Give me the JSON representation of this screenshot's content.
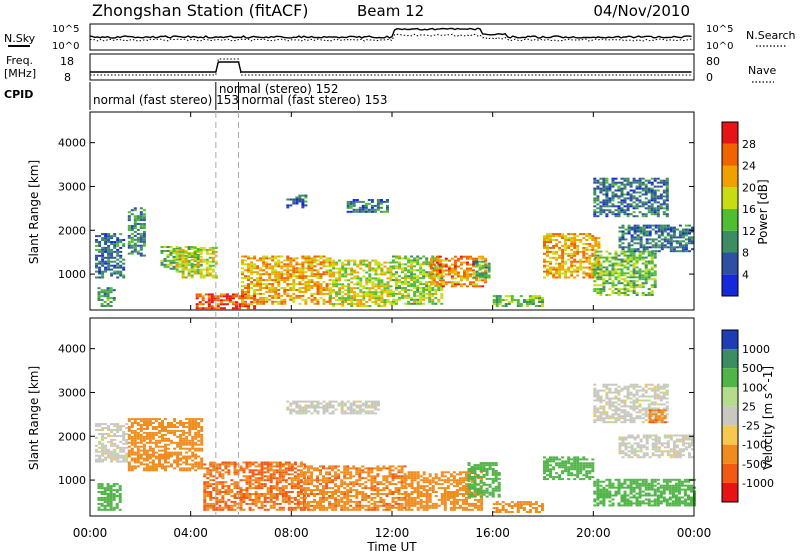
{
  "header": {
    "title": "Zhongshan Station (fitACF)",
    "beam": "Beam 12",
    "date": "04/Nov/2010"
  },
  "top_labels": {
    "nsky": "N.Sky",
    "nsearch": "N.Search",
    "freq": "Freq.",
    "mhz": "[MHz]",
    "nave": "Nave",
    "cpid": "CPID"
  },
  "noise_panel": {
    "left_ticks": [
      "10^5",
      "10^0"
    ],
    "right_ticks": [
      "10^5",
      "10^0"
    ]
  },
  "freq_panel": {
    "left_ticks": [
      "18",
      "8"
    ],
    "right_ticks": [
      "80",
      "0"
    ]
  },
  "cpid_labels": [
    {
      "text": "normal (fast stereo) 153",
      "start_hour": 0.0
    },
    {
      "text": "normal (stereo) 152",
      "start_hour": 5.0
    },
    {
      "text": "normal (fast stereo) 153",
      "start_hour": 5.9
    }
  ],
  "x_axis": {
    "label": "Time UT",
    "ticks": [
      "00:00",
      "04:00",
      "08:00",
      "12:00",
      "16:00",
      "20:00",
      "00:00"
    ],
    "range_hours": [
      0,
      24
    ]
  },
  "y_axis": {
    "label": "Slant Range [km]",
    "ticks": [
      "1000",
      "2000",
      "3000",
      "4000"
    ],
    "range_km": [
      180,
      4700
    ]
  },
  "power_colorbar": {
    "label": "Power [dB]",
    "ticks": [
      "4",
      "8",
      "12",
      "16",
      "20",
      "24",
      "28"
    ],
    "colors": [
      "#1428dc",
      "#2d50a0",
      "#3c8c64",
      "#50be32",
      "#c8dc14",
      "#f0a000",
      "#f06400",
      "#e61414"
    ]
  },
  "velocity_colorbar": {
    "label": "Velocity [m s^-1]",
    "ticks": [
      "1000",
      "500",
      "100",
      "25",
      "-25",
      "-100",
      "-500",
      "-1000"
    ],
    "colors": [
      "#1e3cb4",
      "#3c8c64",
      "#50b446",
      "#b4dc8c",
      "#c8c8c0",
      "#f5c850",
      "#f08c1e",
      "#f05a14",
      "#e61414"
    ]
  },
  "chart_data": [
    {
      "type": "heatmap",
      "panel": "power",
      "ylabel": "Slant Range [km]",
      "xlabel": "Time UT",
      "x_range_hours": [
        0,
        24
      ],
      "y_range_km": [
        180,
        4700
      ],
      "colorbar_label": "Power [dB]",
      "regions": [
        {
          "t": [
            0.2,
            1.3
          ],
          "r": [
            900,
            1900
          ],
          "power_db": 8
        },
        {
          "t": [
            0.3,
            1.0
          ],
          "r": [
            250,
            700
          ],
          "power_db": 12
        },
        {
          "t": [
            1.5,
            2.2
          ],
          "r": [
            1400,
            2500
          ],
          "power_db": 10
        },
        {
          "t": [
            2.8,
            4.4
          ],
          "r": [
            1100,
            1600
          ],
          "power_db": 14
        },
        {
          "t": [
            3.4,
            5.0
          ],
          "r": [
            900,
            1600
          ],
          "power_db": 18
        },
        {
          "t": [
            4.2,
            6.5
          ],
          "r": [
            200,
            550
          ],
          "power_db": 28
        },
        {
          "t": [
            6.0,
            9.5
          ],
          "r": [
            300,
            1400
          ],
          "power_db": 22
        },
        {
          "t": [
            9.5,
            12.0
          ],
          "r": [
            250,
            1300
          ],
          "power_db": 18
        },
        {
          "t": [
            7.8,
            8.6
          ],
          "r": [
            2500,
            2800
          ],
          "power_db": 8
        },
        {
          "t": [
            10.2,
            11.8
          ],
          "r": [
            2400,
            2700
          ],
          "power_db": 8
        },
        {
          "t": [
            12.0,
            14.0
          ],
          "r": [
            300,
            1400
          ],
          "power_db": 16
        },
        {
          "t": [
            13.5,
            15.7
          ],
          "r": [
            700,
            1400
          ],
          "power_db": 24
        },
        {
          "t": [
            15.2,
            15.9
          ],
          "r": [
            900,
            1300
          ],
          "power_db": 12
        },
        {
          "t": [
            16.0,
            18.0
          ],
          "r": [
            250,
            500
          ],
          "power_db": 14
        },
        {
          "t": [
            18.0,
            20.2
          ],
          "r": [
            900,
            1900
          ],
          "power_db": 22
        },
        {
          "t": [
            20.0,
            22.5
          ],
          "r": [
            500,
            1500
          ],
          "power_db": 14
        },
        {
          "t": [
            20.0,
            23.0
          ],
          "r": [
            2300,
            3200
          ],
          "power_db": 8
        },
        {
          "t": [
            21.0,
            24.0
          ],
          "r": [
            1500,
            2100
          ],
          "power_db": 8
        }
      ]
    },
    {
      "type": "heatmap",
      "panel": "velocity",
      "ylabel": "Slant Range [km]",
      "xlabel": "Time UT",
      "x_range_hours": [
        0,
        24
      ],
      "y_range_km": [
        180,
        4700
      ],
      "colorbar_label": "Velocity [m s^-1]",
      "regions": [
        {
          "t": [
            0.2,
            1.5
          ],
          "r": [
            1400,
            2300
          ],
          "velocity": 0
        },
        {
          "t": [
            0.3,
            1.2
          ],
          "r": [
            300,
            900
          ],
          "velocity": 200
        },
        {
          "t": [
            1.5,
            4.5
          ],
          "r": [
            1200,
            2400
          ],
          "velocity": -200
        },
        {
          "t": [
            4.5,
            8.5
          ],
          "r": [
            300,
            1400
          ],
          "velocity": -500
        },
        {
          "t": [
            8.5,
            12.5
          ],
          "r": [
            300,
            1300
          ],
          "velocity": -400
        },
        {
          "t": [
            7.8,
            11.5
          ],
          "r": [
            2500,
            2800
          ],
          "velocity": 0
        },
        {
          "t": [
            12.5,
            15.5
          ],
          "r": [
            300,
            1200
          ],
          "velocity": -300
        },
        {
          "t": [
            15.0,
            16.2
          ],
          "r": [
            600,
            1400
          ],
          "velocity": 200
        },
        {
          "t": [
            16.0,
            18.0
          ],
          "r": [
            250,
            500
          ],
          "velocity": -200
        },
        {
          "t": [
            18.0,
            20.0
          ],
          "r": [
            1000,
            1500
          ],
          "velocity": 200
        },
        {
          "t": [
            20.0,
            24.0
          ],
          "r": [
            400,
            1000
          ],
          "velocity": 300
        },
        {
          "t": [
            20.0,
            23.0
          ],
          "r": [
            2300,
            3200
          ],
          "velocity": 0
        },
        {
          "t": [
            21.0,
            24.0
          ],
          "r": [
            1500,
            2000
          ],
          "velocity": 0
        },
        {
          "t": [
            22.2,
            22.9
          ],
          "r": [
            2300,
            2600
          ],
          "velocity": -400
        }
      ]
    }
  ]
}
